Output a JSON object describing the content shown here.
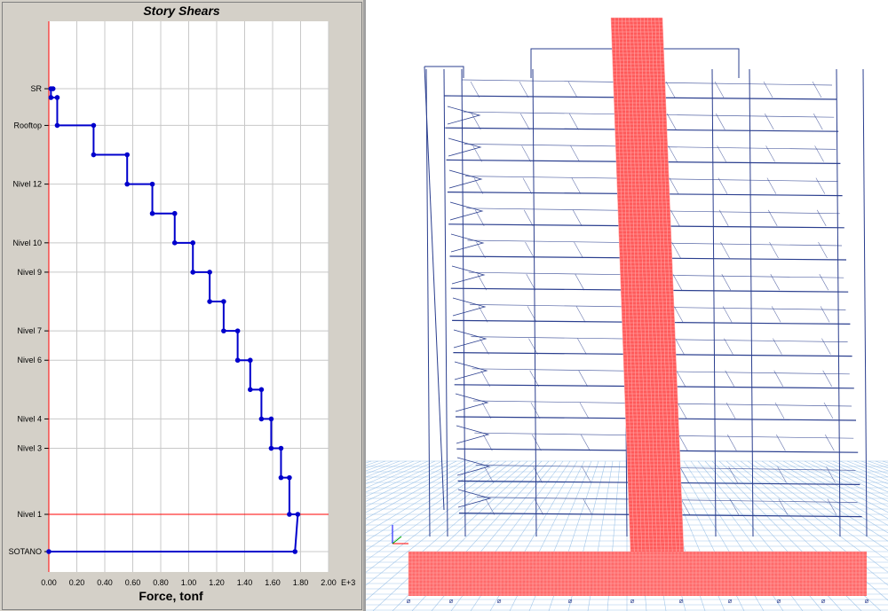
{
  "chart_data": {
    "type": "line",
    "title": "Story Shears",
    "xlabel": "Force, tonf",
    "x_exponent_label": "E+3",
    "xlim": [
      0,
      2.0
    ],
    "x_ticks": [
      "0.00",
      "0.20",
      "0.40",
      "0.60",
      "0.80",
      "1.00",
      "1.20",
      "1.40",
      "1.60",
      "1.80",
      "2.00"
    ],
    "grid": true,
    "stories": [
      {
        "name": "SR",
        "level": 15.5,
        "labeled": true
      },
      {
        "name": "",
        "level": 15.2,
        "labeled": false
      },
      {
        "name": "Rooftop",
        "level": 14.25,
        "labeled": true
      },
      {
        "name": "",
        "level": 13.25,
        "labeled": false
      },
      {
        "name": "Nivel 12",
        "level": 12.25,
        "labeled": true
      },
      {
        "name": "",
        "level": 11.25,
        "labeled": false
      },
      {
        "name": "Nivel 10",
        "level": 10.25,
        "labeled": true
      },
      {
        "name": "Nivel 9",
        "level": 9.25,
        "labeled": true
      },
      {
        "name": "",
        "level": 8.25,
        "labeled": false
      },
      {
        "name": "Nivel 7",
        "level": 7.25,
        "labeled": true
      },
      {
        "name": "Nivel 6",
        "level": 6.25,
        "labeled": true
      },
      {
        "name": "",
        "level": 5.25,
        "labeled": false
      },
      {
        "name": "Nivel 4",
        "level": 4.25,
        "labeled": true
      },
      {
        "name": "Nivel 3",
        "level": 3.25,
        "labeled": true
      },
      {
        "name": "",
        "level": 2.25,
        "labeled": false
      },
      {
        "name": "Nivel 1",
        "level": 1.0,
        "labeled": true
      },
      {
        "name": "SOTANO",
        "level": 0.0,
        "labeled": true
      }
    ],
    "series": [
      {
        "points": [
          [
            0.03,
            15.5
          ],
          [
            0.015,
            15.5
          ],
          [
            0.015,
            15.2
          ],
          [
            0.06,
            15.2
          ],
          [
            0.06,
            14.25
          ],
          [
            0.32,
            14.25
          ],
          [
            0.32,
            13.25
          ],
          [
            0.56,
            13.25
          ],
          [
            0.56,
            12.25
          ],
          [
            0.74,
            12.25
          ],
          [
            0.74,
            11.25
          ],
          [
            0.9,
            11.25
          ],
          [
            0.9,
            10.25
          ],
          [
            1.03,
            10.25
          ],
          [
            1.03,
            9.25
          ],
          [
            1.15,
            9.25
          ],
          [
            1.15,
            8.25
          ],
          [
            1.25,
            8.25
          ],
          [
            1.25,
            7.25
          ],
          [
            1.35,
            7.25
          ],
          [
            1.35,
            6.25
          ],
          [
            1.44,
            6.25
          ],
          [
            1.44,
            5.25
          ],
          [
            1.52,
            5.25
          ],
          [
            1.52,
            4.25
          ],
          [
            1.59,
            4.25
          ],
          [
            1.59,
            3.25
          ],
          [
            1.66,
            3.25
          ],
          [
            1.66,
            2.25
          ],
          [
            1.72,
            2.25
          ],
          [
            1.72,
            1.0
          ],
          [
            1.78,
            1.0
          ],
          [
            1.76,
            0.0
          ],
          [
            0.0,
            0.0
          ]
        ],
        "color": "#0000cc"
      }
    ],
    "base_line_level": 1.0,
    "base_line_color": "#ff0000"
  },
  "model_view": {
    "frame_color": "#2b3f8f",
    "wall_color": "#ff5a5a",
    "grid_color": "#7fb0e0"
  }
}
